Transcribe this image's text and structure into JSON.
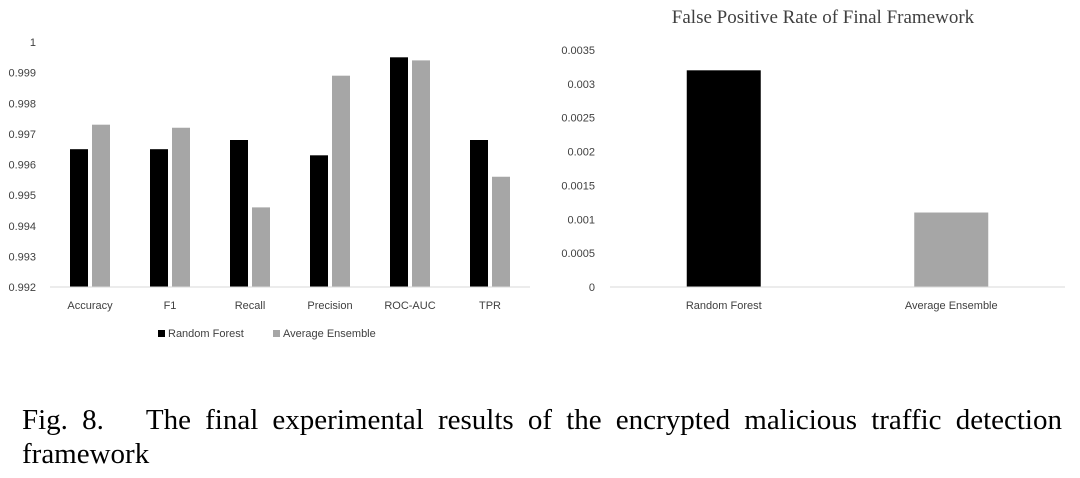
{
  "colors": {
    "random_forest": "#000000",
    "average_ensemble": "#a6a6a6",
    "axis": "#d9d9d9"
  },
  "chart_data": [
    {
      "type": "bar",
      "title": "",
      "xlabel": "",
      "ylabel": "",
      "categories": [
        "Accuracy",
        "F1",
        "Recall",
        "Precision",
        "ROC-AUC",
        "TPR"
      ],
      "series": [
        {
          "name": "Random Forest",
          "values": [
            0.9965,
            0.9965,
            0.9968,
            0.9963,
            0.9995,
            0.9968
          ]
        },
        {
          "name": "Average Ensemble",
          "values": [
            0.9973,
            0.9972,
            0.9946,
            0.9989,
            0.9994,
            0.9956
          ]
        }
      ],
      "ylim": [
        0.992,
        1
      ],
      "yticks": [
        "0.992",
        "0.993",
        "0.994",
        "0.995",
        "0.996",
        "0.997",
        "0.998",
        "0.999",
        "1"
      ],
      "legend": "bottom",
      "grid": false
    },
    {
      "type": "bar",
      "title": "False Positive Rate of Final Framework",
      "xlabel": "",
      "ylabel": "",
      "categories": [
        "Random Forest",
        "Average Ensemble"
      ],
      "values": [
        0.0032,
        0.0011
      ],
      "ylim": [
        0,
        0.0035
      ],
      "yticks": [
        "0",
        "0.0005",
        "0.001",
        "0.0015",
        "0.002",
        "0.0025",
        "0.003",
        "0.0035"
      ],
      "legend": "none",
      "grid": false
    }
  ],
  "caption": {
    "label": "Fig. 8.",
    "text": "The final experimental results of the encrypted malicious traffic detection framework"
  }
}
